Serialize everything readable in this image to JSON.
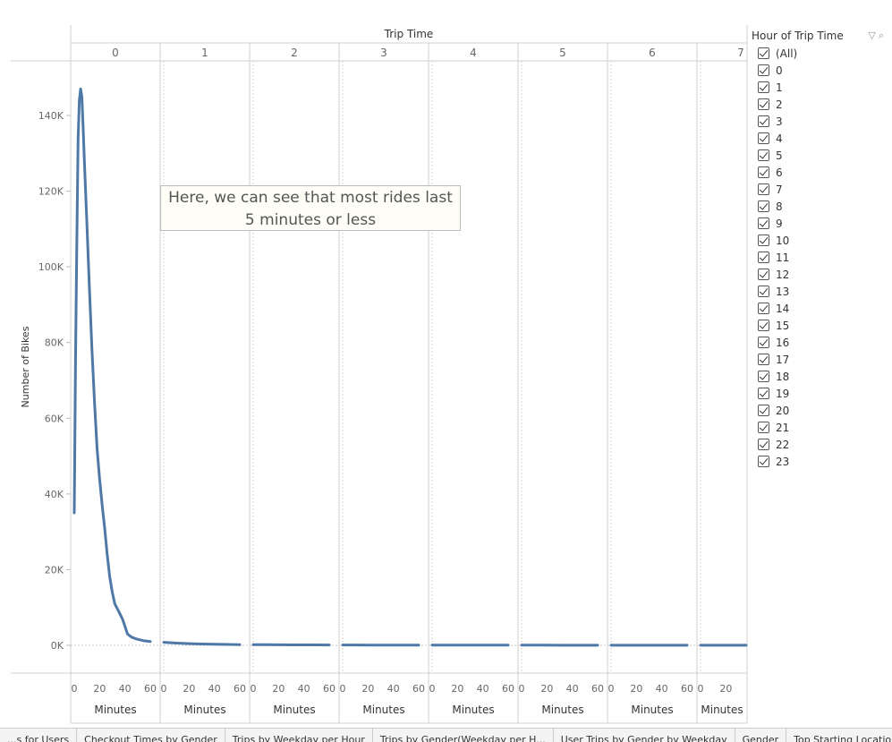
{
  "chart_data": {
    "type": "line",
    "title": "Trip Time",
    "ylabel": "Number of Bikes",
    "xlabel": "Minutes",
    "ylim": [
      0,
      150000
    ],
    "yticks": [
      0,
      20000,
      40000,
      60000,
      80000,
      100000,
      120000,
      140000
    ],
    "ytick_labels": [
      "0K",
      "20K",
      "40K",
      "60K",
      "80K",
      "100K",
      "120K",
      "140K"
    ],
    "xticks": [
      0,
      20,
      40,
      60
    ],
    "xtick_labels": [
      "0",
      "20",
      "40",
      "60"
    ],
    "panels": [
      {
        "label": "0",
        "x": [
          0,
          1,
          2,
          3,
          4,
          5,
          6,
          7,
          8,
          10,
          12,
          14,
          16,
          18,
          20,
          22,
          24,
          26,
          28,
          30,
          32,
          35,
          38,
          40,
          42,
          45,
          48,
          50,
          55,
          60
        ],
        "y": [
          35000,
          75000,
          105000,
          134000,
          144000,
          147000,
          145000,
          137000,
          128000,
          111000,
          94000,
          78000,
          64000,
          52000,
          44000,
          37000,
          31000,
          24000,
          18000,
          14000,
          11000,
          9000,
          7000,
          5000,
          3000,
          2200,
          1800,
          1600,
          1200,
          1000
        ]
      },
      {
        "label": "1",
        "x": [
          0,
          10,
          20,
          30,
          40,
          50,
          60
        ],
        "y": [
          800,
          600,
          450,
          350,
          280,
          230,
          200
        ]
      },
      {
        "label": "2",
        "x": [
          0,
          10,
          20,
          30,
          40,
          50,
          60
        ],
        "y": [
          180,
          160,
          140,
          130,
          120,
          110,
          100
        ]
      },
      {
        "label": "3",
        "x": [
          0,
          10,
          20,
          30,
          40,
          50,
          60
        ],
        "y": [
          90,
          85,
          80,
          75,
          70,
          65,
          60
        ]
      },
      {
        "label": "4",
        "x": [
          0,
          10,
          20,
          30,
          40,
          50,
          60
        ],
        "y": [
          60,
          55,
          50,
          48,
          45,
          42,
          40
        ]
      },
      {
        "label": "5",
        "x": [
          0,
          10,
          20,
          30,
          40,
          50,
          60
        ],
        "y": [
          40,
          38,
          36,
          34,
          32,
          30,
          28
        ]
      },
      {
        "label": "6",
        "x": [
          0,
          10,
          20,
          30,
          40,
          50,
          60
        ],
        "y": [
          30,
          28,
          26,
          25,
          24,
          23,
          22
        ]
      },
      {
        "label": "7",
        "x": [
          0,
          10,
          20,
          30,
          40,
          50,
          60
        ],
        "y": [
          22,
          21,
          20,
          19,
          18,
          17,
          16
        ]
      }
    ],
    "series_color": "#4e79a7",
    "grid": false
  },
  "annotation": {
    "line1": "Here, we can see that most rides last",
    "line2": "5 minutes or less"
  },
  "filter": {
    "title": "Hour of Trip Time",
    "items": [
      "(All)",
      "0",
      "1",
      "2",
      "3",
      "4",
      "5",
      "6",
      "7",
      "8",
      "9",
      "10",
      "11",
      "12",
      "13",
      "14",
      "15",
      "16",
      "17",
      "18",
      "19",
      "20",
      "21",
      "22",
      "23"
    ]
  },
  "tabs": [
    "...s for Users",
    "Checkout Times by Gender",
    "Trips by Weekday per Hour",
    "Trips by Gender(Weekday per H...",
    "User Trips by Gender by Weekday",
    "Gender",
    "Top Starting Locations"
  ]
}
